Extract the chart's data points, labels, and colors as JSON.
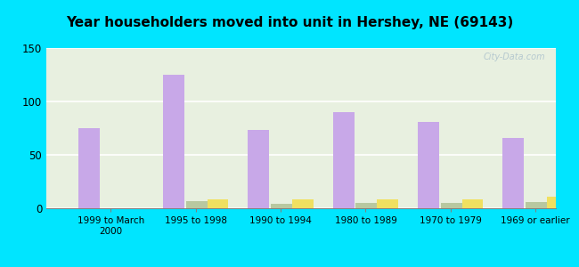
{
  "title": "Year householders moved into unit in Hershey, NE (69143)",
  "categories": [
    "1999 to March\n2000",
    "1995 to 1998",
    "1990 to 1994",
    "1980 to 1989",
    "1970 to 1979",
    "1969 or earlier"
  ],
  "series": {
    "White Non-Hispanic": [
      75,
      125,
      73,
      90,
      81,
      66
    ],
    "Other Race": [
      0,
      7,
      4,
      5,
      5,
      6
    ],
    "Hispanic or Latino": [
      0,
      8,
      8,
      8,
      8,
      11
    ]
  },
  "colors": {
    "White Non-Hispanic": "#c8a8e8",
    "Other Race": "#b8c8a0",
    "Hispanic or Latino": "#f0e060"
  },
  "legend_colors": {
    "White Non-Hispanic": "#c090d8",
    "Other Race": "#a8b890",
    "Hispanic or Latino": "#f0d840"
  },
  "ylim": [
    0,
    150
  ],
  "yticks": [
    0,
    50,
    100,
    150
  ],
  "background_outer": "#00e5ff",
  "background_plot": "#e8f0e0",
  "grid_color": "#ffffff",
  "bar_width": 0.25,
  "watermark": "City-Data.com"
}
